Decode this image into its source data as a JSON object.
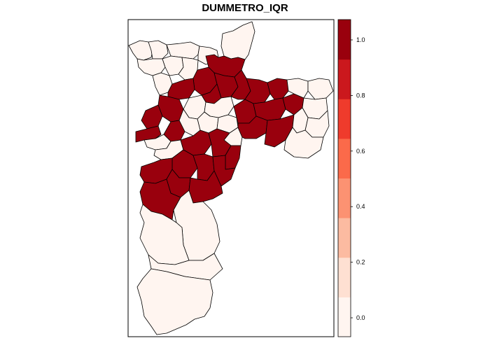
{
  "title": "DUMMETRO_IQR",
  "colors": {
    "low": "#fff5f0",
    "high": "#99000d",
    "scale": [
      "#fff5f0",
      "#fee0d2",
      "#fcbba1",
      "#fc9272",
      "#fb6a4a",
      "#ef3b2c",
      "#cb181d",
      "#99000d"
    ]
  },
  "legend": {
    "labels": [
      "0.0",
      "0.2",
      "0.4",
      "0.6",
      "0.8",
      "1.0"
    ],
    "values": [
      0.0,
      0.2,
      0.4,
      0.6,
      0.8,
      1.0
    ]
  },
  "map": {
    "value_range": [
      0,
      1.07
    ],
    "legend_position": "right",
    "districts": [
      {
        "id": "n1",
        "value": 0
      },
      {
        "id": "n2",
        "value": 0
      },
      {
        "id": "n3",
        "value": 0
      },
      {
        "id": "n4",
        "value": 0
      },
      {
        "id": "n5",
        "value": 0
      },
      {
        "id": "n6",
        "value": 0
      },
      {
        "id": "n7",
        "value": 0
      },
      {
        "id": "n8",
        "value": 0
      },
      {
        "id": "n9",
        "value": 0
      },
      {
        "id": "n10",
        "value": 1
      },
      {
        "id": "n11",
        "value": 1
      },
      {
        "id": "n12",
        "value": 1
      },
      {
        "id": "n13",
        "value": 1
      },
      {
        "id": "n14",
        "value": 1
      },
      {
        "id": "n15",
        "value": 1
      },
      {
        "id": "c1",
        "value": 0
      },
      {
        "id": "c2",
        "value": 0
      },
      {
        "id": "c3",
        "value": 0
      },
      {
        "id": "c4",
        "value": 0
      },
      {
        "id": "c5",
        "value": 0
      },
      {
        "id": "c6",
        "value": 0
      },
      {
        "id": "w1",
        "value": 1
      },
      {
        "id": "w2",
        "value": 1
      },
      {
        "id": "w3",
        "value": 1
      },
      {
        "id": "w4",
        "value": 1
      },
      {
        "id": "w5",
        "value": 0
      },
      {
        "id": "w6",
        "value": 0
      },
      {
        "id": "e1",
        "value": 1
      },
      {
        "id": "e2",
        "value": 1
      },
      {
        "id": "e3",
        "value": 1
      },
      {
        "id": "e4",
        "value": 1
      },
      {
        "id": "e5",
        "value": 1
      },
      {
        "id": "e6",
        "value": 1
      },
      {
        "id": "e7",
        "value": 1
      },
      {
        "id": "e8",
        "value": 0
      },
      {
        "id": "e9",
        "value": 0
      },
      {
        "id": "e10",
        "value": 0
      },
      {
        "id": "e11",
        "value": 0
      },
      {
        "id": "e12",
        "value": 0
      },
      {
        "id": "e13",
        "value": 0
      },
      {
        "id": "s1",
        "value": 1
      },
      {
        "id": "s2",
        "value": 1
      },
      {
        "id": "s3",
        "value": 1
      },
      {
        "id": "s4",
        "value": 1
      },
      {
        "id": "s5",
        "value": 1
      },
      {
        "id": "s6",
        "value": 1
      },
      {
        "id": "s7",
        "value": 1
      },
      {
        "id": "s8",
        "value": 1
      },
      {
        "id": "s9",
        "value": 1
      },
      {
        "id": "s10",
        "value": 1
      },
      {
        "id": "f1",
        "value": 0
      },
      {
        "id": "f2",
        "value": 0
      },
      {
        "id": "f3",
        "value": 0
      },
      {
        "id": "f4",
        "value": 0
      }
    ]
  }
}
